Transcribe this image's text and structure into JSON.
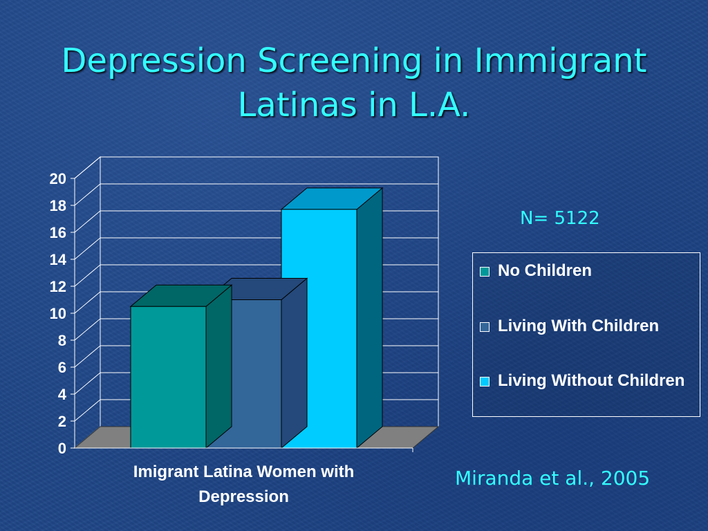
{
  "slide": {
    "title_line1": "Depression Screening in Immigrant",
    "title_line2": "Latinas in L.A.",
    "n_label": "N= 5122",
    "citation": "Miranda et al., 2005"
  },
  "legend": {
    "items": [
      {
        "label": "No Children",
        "color": "#009999"
      },
      {
        "label": "Living With Children",
        "color": "#336699"
      },
      {
        "label": "Living Without Children",
        "color": "#00ccff"
      }
    ]
  },
  "chart_data": {
    "type": "bar",
    "style": "3d-clustered-column",
    "categories": [
      "Imigrant Latina Women with Depression"
    ],
    "category_lines": [
      "Imigrant Latina Women with",
      "Depression"
    ],
    "series": [
      {
        "name": "No Children",
        "values": [
          10.5
        ],
        "color": "#009999",
        "top": "#006666",
        "side": "#006666"
      },
      {
        "name": "Living With Children",
        "values": [
          11
        ],
        "color": "#336699",
        "top": "#24497a",
        "side": "#24497a"
      },
      {
        "name": "Living Without Children",
        "values": [
          17.7
        ],
        "color": "#00ccff",
        "top": "#0099cc",
        "side": "#006680"
      }
    ],
    "ylim": [
      0,
      20
    ],
    "yticks": [
      "0",
      "2",
      "4",
      "6",
      "8",
      "10",
      "12",
      "14",
      "16",
      "18",
      "20"
    ],
    "grid": true,
    "legend": "right",
    "title": "",
    "xlabel": "",
    "ylabel": ""
  }
}
